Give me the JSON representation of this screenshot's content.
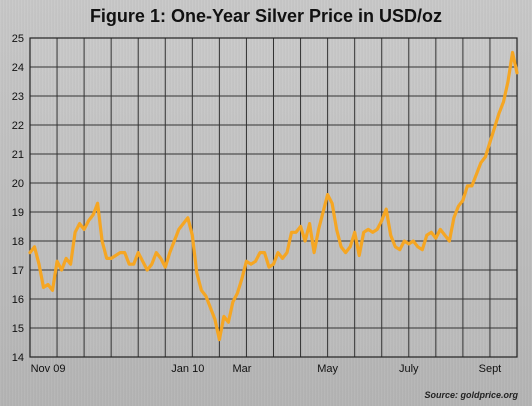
{
  "title": "Figure 1: One-Year Silver Price in USD/oz",
  "source": "Source: goldprice.org",
  "colors": {
    "line": "#f5a623",
    "grid": "#333333",
    "background": "#b9b9b9"
  },
  "chart_data": {
    "type": "line",
    "title": "Figure 1: One-Year Silver Price in USD/oz",
    "xlabel": "",
    "ylabel": "",
    "ylim": [
      14,
      25
    ],
    "yticks": [
      14,
      15,
      16,
      17,
      18,
      19,
      20,
      21,
      22,
      23,
      24,
      25
    ],
    "xlim": [
      0,
      54
    ],
    "xticks": [
      {
        "x": 2,
        "label": "Nov 09"
      },
      {
        "x": 17.5,
        "label": "Jan 10"
      },
      {
        "x": 23.5,
        "label": "Mar"
      },
      {
        "x": 33,
        "label": "May"
      },
      {
        "x": 42,
        "label": "July"
      },
      {
        "x": 51,
        "label": "Sept"
      }
    ],
    "grid": true,
    "series": [
      {
        "x": [
          0,
          0.5,
          1,
          1.5,
          2,
          2.5,
          3,
          3.5,
          4,
          4.5,
          5,
          5.5,
          6,
          6.5,
          7,
          7.5,
          8,
          8.5,
          9,
          9.5,
          10,
          10.5,
          11,
          11.5,
          12,
          12.5,
          13,
          13.5,
          14,
          14.5,
          15,
          15.5,
          16,
          16.5,
          17,
          17.5,
          18,
          18.5,
          19,
          19.5,
          20,
          20.5,
          21,
          21.5,
          22,
          22.5,
          23,
          23.5,
          24,
          24.5,
          25,
          25.5,
          26,
          26.5,
          27,
          27.5,
          28,
          28.5,
          29,
          29.5,
          30,
          30.5,
          31,
          31.5,
          32,
          32.5,
          33,
          33.5,
          34,
          34.5,
          35,
          35.5,
          36,
          36.5,
          37,
          37.5,
          38,
          38.5,
          39,
          39.5,
          40,
          40.5,
          41,
          41.5,
          42,
          42.5,
          43,
          43.5,
          44,
          44.5,
          45,
          45.5,
          46,
          46.5,
          47,
          47.5,
          48,
          48.5,
          49,
          49.5,
          50,
          50.5,
          51,
          51.5,
          52,
          52.5,
          53,
          53.5,
          54
        ],
        "y": [
          17.6,
          17.8,
          17.2,
          16.4,
          16.5,
          16.3,
          17.3,
          17.0,
          17.4,
          17.2,
          18.3,
          18.6,
          18.4,
          18.7,
          18.9,
          19.3,
          18.0,
          17.4,
          17.4,
          17.5,
          17.6,
          17.6,
          17.2,
          17.2,
          17.6,
          17.3,
          17.0,
          17.2,
          17.6,
          17.4,
          17.1,
          17.6,
          18.0,
          18.4,
          18.6,
          18.8,
          18.2,
          16.9,
          16.3,
          16.1,
          15.7,
          15.3,
          14.6,
          15.4,
          15.2,
          15.9,
          16.2,
          16.7,
          17.3,
          17.2,
          17.3,
          17.6,
          17.6,
          17.1,
          17.2,
          17.6,
          17.4,
          17.6,
          18.3,
          18.3,
          18.5,
          18.0,
          18.6,
          17.6,
          18.4,
          19.0,
          19.6,
          19.3,
          18.4,
          17.8,
          17.6,
          17.8,
          18.3,
          17.5,
          18.3,
          18.4,
          18.3,
          18.4,
          18.7,
          19.1,
          18.2,
          17.8,
          17.7,
          18.0,
          17.9,
          18.0,
          17.8,
          17.7,
          18.2,
          18.3,
          18.1,
          18.4,
          18.2,
          18.0,
          18.8,
          19.2,
          19.4,
          19.9,
          19.9,
          20.3,
          20.7,
          20.9,
          21.4,
          21.9,
          22.4,
          22.8,
          23.5,
          24.5,
          23.8
        ]
      }
    ]
  }
}
